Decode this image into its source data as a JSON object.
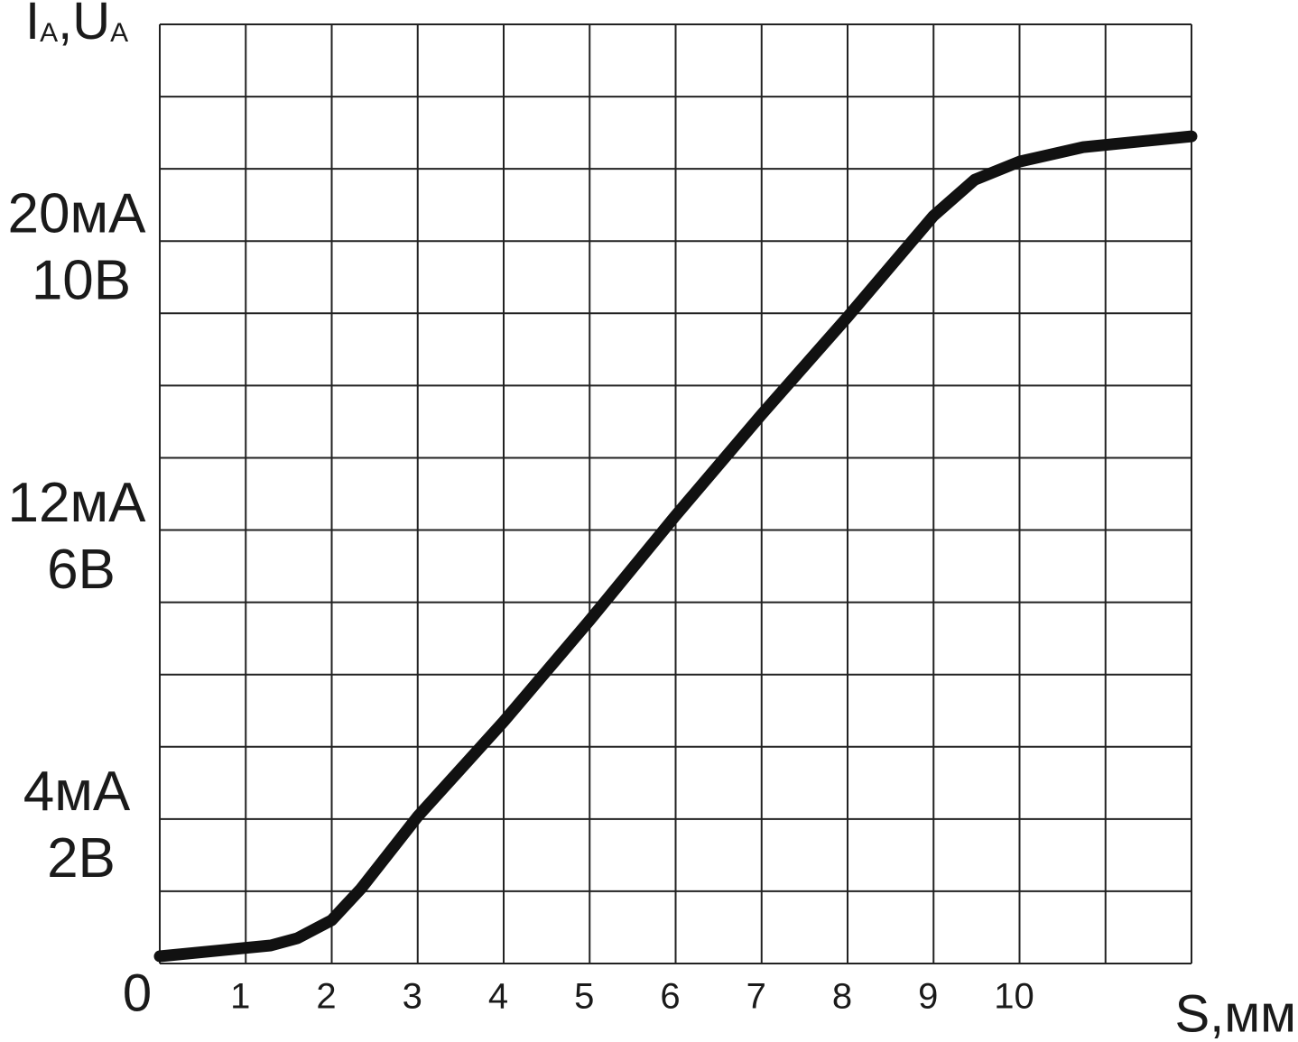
{
  "chart_data": {
    "type": "line",
    "y_label": [
      "I",
      "A",
      ",U",
      "A"
    ],
    "x_label": "S,мм",
    "xlim": [
      0,
      12
    ],
    "xticks": [
      0,
      1,
      2,
      3,
      4,
      5,
      6,
      7,
      8,
      9,
      10
    ],
    "ylim": [
      0,
      26
    ],
    "yticks": [
      {
        "value": 4,
        "label": "4мА"
      },
      {
        "value": 12,
        "label": "12мА"
      },
      {
        "value": 20,
        "label": "20мА"
      }
    ],
    "y2lim": [
      0,
      13
    ],
    "y2ticks": [
      {
        "value": 2,
        "label": "2В"
      },
      {
        "value": 6,
        "label": "6В"
      },
      {
        "value": 10,
        "label": "10В"
      }
    ],
    "xgrid": [
      0,
      1,
      2,
      3,
      4,
      5,
      6,
      7,
      8,
      9,
      10,
      11,
      12
    ],
    "ygrid": [
      0,
      2,
      4,
      6,
      8,
      10,
      12,
      14,
      16,
      18,
      20,
      22,
      24,
      26
    ],
    "grid": true,
    "series": [
      {
        "color": "#111111",
        "x": [
          0,
          1.29,
          1.6,
          2,
          2.34,
          3,
          4,
          5,
          6,
          7,
          8,
          9,
          9.48,
          10,
          10.74,
          12
        ],
        "values": [
          0.2,
          0.5,
          0.7,
          1.2,
          2.07,
          4.07,
          6.7,
          9.5,
          12.4,
          15.2,
          17.9,
          20.7,
          21.7,
          22.2,
          22.6,
          22.9
        ]
      }
    ]
  }
}
